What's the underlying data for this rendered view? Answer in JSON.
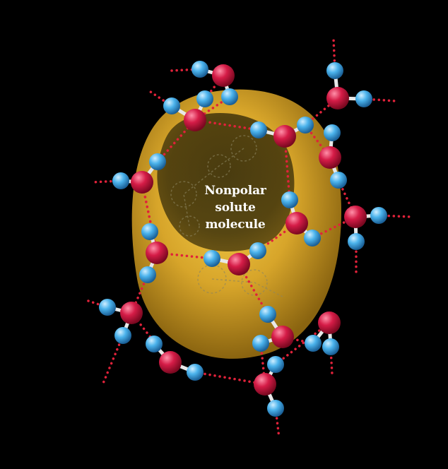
{
  "label": {
    "lines": [
      "Nonpolar",
      "solute",
      "molecule"
    ]
  },
  "colors": {
    "background": "#000000",
    "solute_surface": "#d9a92a",
    "solute_inner": "#3b2f08",
    "oxygen": "#c8153f",
    "hydrogen": "#3fa9e6",
    "hydrogen_bond": "#e0223a"
  }
}
